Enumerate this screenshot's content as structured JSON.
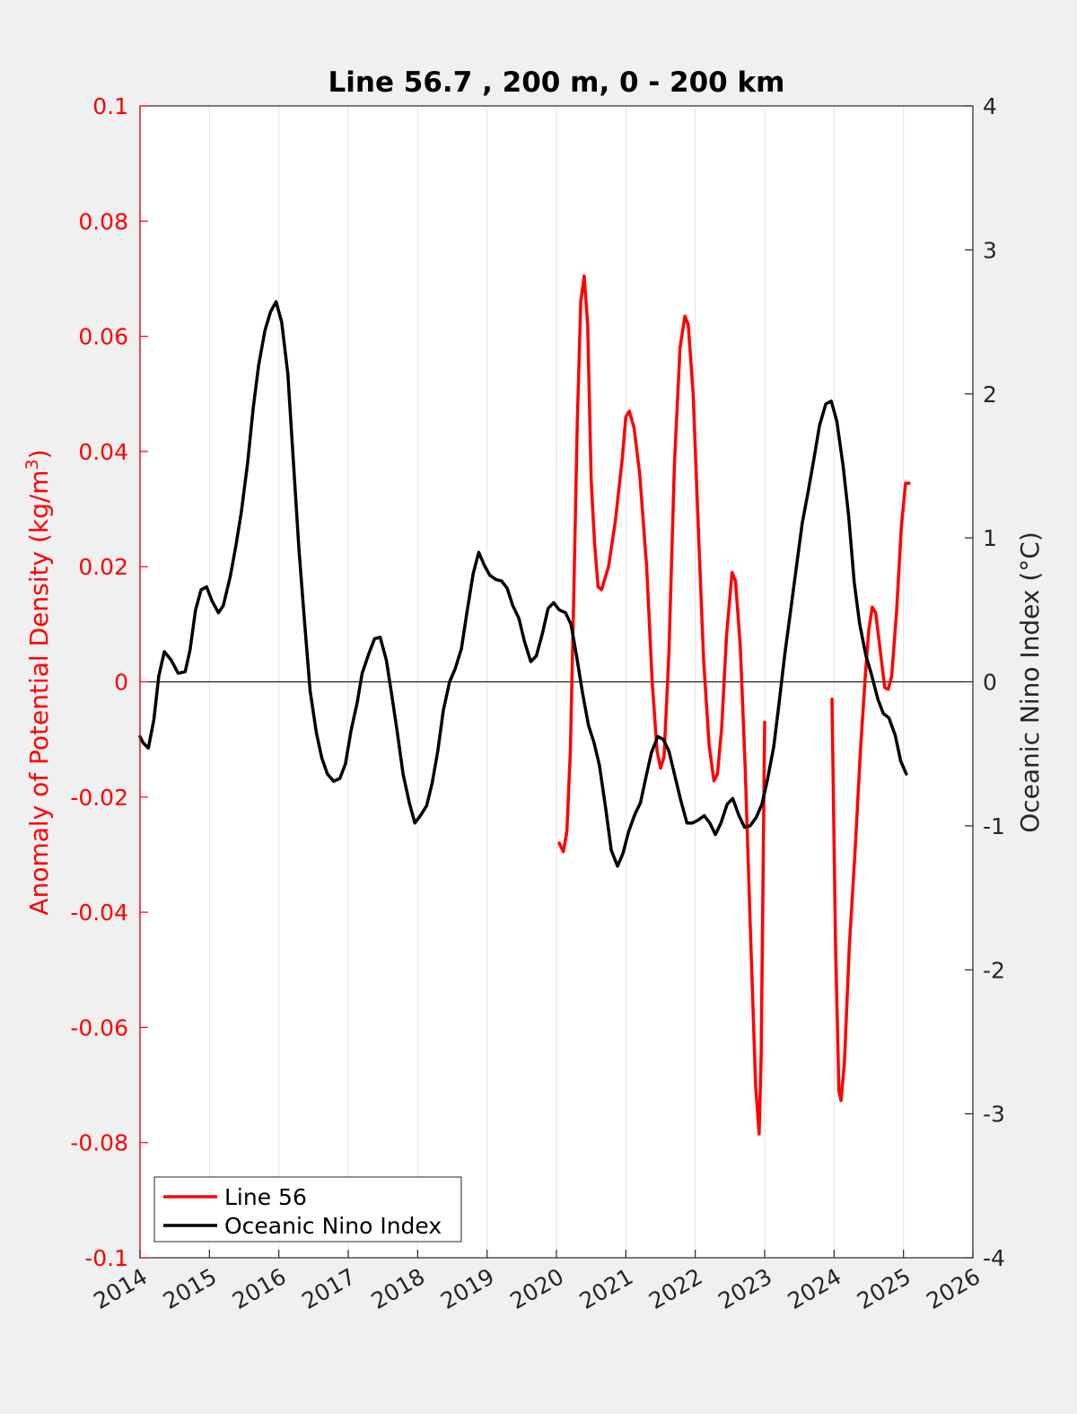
{
  "chart_data": {
    "type": "line",
    "title": "Line 56.7 , 200 m, 0 - 200 km",
    "ylabel_left_main": "Anomaly of Potential Density (kg/m",
    "ylabel_left_sup": "3",
    "ylabel_left_tail": ")",
    "ylabel_right": "Oceanic Nino Index (°C)",
    "xlim": [
      2014,
      2026
    ],
    "ylim_left": [
      -0.1,
      0.1
    ],
    "ylim_right": [
      -4,
      4
    ],
    "x_ticks": [
      {
        "value": 2014,
        "label": "2014"
      },
      {
        "value": 2015,
        "label": "2015"
      },
      {
        "value": 2016,
        "label": "2016"
      },
      {
        "value": 2017,
        "label": "2017"
      },
      {
        "value": 2018,
        "label": "2018"
      },
      {
        "value": 2019,
        "label": "2019"
      },
      {
        "value": 2020,
        "label": "2020"
      },
      {
        "value": 2021,
        "label": "2021"
      },
      {
        "value": 2022,
        "label": "2022"
      },
      {
        "value": 2023,
        "label": "2023"
      },
      {
        "value": 2024,
        "label": "2024"
      },
      {
        "value": 2025,
        "label": "2025"
      },
      {
        "value": 2026,
        "label": "2026"
      }
    ],
    "y_left_ticks": [
      {
        "value": 0.1,
        "label": "0.1"
      },
      {
        "value": 0.08,
        "label": "0.08"
      },
      {
        "value": 0.06,
        "label": "0.06"
      },
      {
        "value": 0.04,
        "label": "0.04"
      },
      {
        "value": 0.02,
        "label": "0.02"
      },
      {
        "value": 0,
        "label": "0"
      },
      {
        "value": -0.02,
        "label": "-0.02"
      },
      {
        "value": -0.04,
        "label": "-0.04"
      },
      {
        "value": -0.06,
        "label": "-0.06"
      },
      {
        "value": -0.08,
        "label": "-0.08"
      },
      {
        "value": -0.1,
        "label": "-0.1"
      }
    ],
    "y_right_ticks": [
      {
        "value": 4,
        "label": "4"
      },
      {
        "value": 3,
        "label": "3"
      },
      {
        "value": 2,
        "label": "2"
      },
      {
        "value": 1,
        "label": "1"
      },
      {
        "value": 0,
        "label": "0"
      },
      {
        "value": -1,
        "label": "-1"
      },
      {
        "value": -2,
        "label": "-2"
      },
      {
        "value": -3,
        "label": "-3"
      },
      {
        "value": -4,
        "label": "-4"
      }
    ],
    "grid": "vertical",
    "zero_line": true,
    "legend_position": "bottom-left",
    "colors": {
      "line56": "#ff0000",
      "oni": "#000000",
      "left_axis": "#ff0000",
      "right_axis": "#262626"
    },
    "series": [
      {
        "name": "Line 56",
        "axis": "left",
        "color": "#ff0000",
        "segments": [
          [
            [
              2020.04,
              -0.028
            ],
            [
              2020.1,
              -0.0295
            ],
            [
              2020.15,
              -0.026
            ],
            [
              2020.2,
              -0.012
            ],
            [
              2020.25,
              0.015
            ],
            [
              2020.3,
              0.045
            ],
            [
              2020.35,
              0.066
            ],
            [
              2020.4,
              0.0705
            ],
            [
              2020.45,
              0.062
            ],
            [
              2020.5,
              0.035
            ],
            [
              2020.55,
              0.024
            ],
            [
              2020.6,
              0.0165
            ],
            [
              2020.65,
              0.016
            ],
            [
              2020.75,
              0.02
            ],
            [
              2020.85,
              0.028
            ],
            [
              2020.95,
              0.039
            ],
            [
              2021.0,
              0.046
            ],
            [
              2021.05,
              0.047
            ],
            [
              2021.12,
              0.044
            ],
            [
              2021.2,
              0.036
            ],
            [
              2021.3,
              0.02
            ],
            [
              2021.38,
              0.0
            ],
            [
              2021.45,
              -0.012
            ],
            [
              2021.5,
              -0.015
            ],
            [
              2021.55,
              -0.013
            ],
            [
              2021.62,
              0.005
            ],
            [
              2021.7,
              0.038
            ],
            [
              2021.78,
              0.058
            ],
            [
              2021.85,
              0.0635
            ],
            [
              2021.9,
              0.062
            ],
            [
              2021.97,
              0.05
            ],
            [
              2022.05,
              0.025
            ],
            [
              2022.12,
              0.004
            ],
            [
              2022.2,
              -0.011
            ],
            [
              2022.27,
              -0.0172
            ],
            [
              2022.32,
              -0.016
            ],
            [
              2022.38,
              -0.008
            ],
            [
              2022.45,
              0.008
            ],
            [
              2022.53,
              0.019
            ],
            [
              2022.58,
              0.0175
            ],
            [
              2022.65,
              0.006
            ],
            [
              2022.72,
              -0.015
            ],
            [
              2022.8,
              -0.045
            ],
            [
              2022.87,
              -0.07
            ],
            [
              2022.92,
              -0.0785
            ],
            [
              2022.95,
              -0.065
            ],
            [
              2023.0,
              -0.007
            ]
          ],
          [
            [
              2023.97,
              -0.003
            ],
            [
              2024.02,
              -0.045
            ],
            [
              2024.07,
              -0.071
            ],
            [
              2024.1,
              -0.0727
            ],
            [
              2024.15,
              -0.066
            ],
            [
              2024.22,
              -0.046
            ],
            [
              2024.3,
              -0.03
            ],
            [
              2024.38,
              -0.012
            ],
            [
              2024.45,
              0.001
            ],
            [
              2024.5,
              0.009
            ],
            [
              2024.55,
              0.013
            ],
            [
              2024.6,
              0.012
            ],
            [
              2024.67,
              0.005
            ],
            [
              2024.73,
              -0.001
            ],
            [
              2024.78,
              -0.0013
            ],
            [
              2024.83,
              0.001
            ],
            [
              2024.9,
              0.012
            ],
            [
              2024.97,
              0.027
            ],
            [
              2025.03,
              0.0345
            ],
            [
              2025.08,
              0.0345
            ]
          ]
        ]
      },
      {
        "name": "Oceanic Nino Index",
        "axis": "right",
        "color": "#000000",
        "points": [
          [
            2014.0,
            -0.38
          ],
          [
            2014.04,
            -0.42
          ],
          [
            2014.12,
            -0.46
          ],
          [
            2014.2,
            -0.26
          ],
          [
            2014.27,
            0.04
          ],
          [
            2014.35,
            0.21
          ],
          [
            2014.45,
            0.15
          ],
          [
            2014.55,
            0.06
          ],
          [
            2014.65,
            0.07
          ],
          [
            2014.72,
            0.22
          ],
          [
            2014.8,
            0.5
          ],
          [
            2014.88,
            0.64
          ],
          [
            2014.96,
            0.66
          ],
          [
            2015.04,
            0.56
          ],
          [
            2015.13,
            0.48
          ],
          [
            2015.2,
            0.53
          ],
          [
            2015.3,
            0.73
          ],
          [
            2015.38,
            0.94
          ],
          [
            2015.46,
            1.18
          ],
          [
            2015.55,
            1.52
          ],
          [
            2015.63,
            1.9
          ],
          [
            2015.71,
            2.2
          ],
          [
            2015.8,
            2.44
          ],
          [
            2015.88,
            2.57
          ],
          [
            2015.96,
            2.64
          ],
          [
            2016.04,
            2.5
          ],
          [
            2016.13,
            2.14
          ],
          [
            2016.21,
            1.53
          ],
          [
            2016.29,
            0.92
          ],
          [
            2016.37,
            0.42
          ],
          [
            2016.45,
            -0.06
          ],
          [
            2016.54,
            -0.35
          ],
          [
            2016.62,
            -0.53
          ],
          [
            2016.7,
            -0.64
          ],
          [
            2016.79,
            -0.69
          ],
          [
            2016.88,
            -0.67
          ],
          [
            2016.96,
            -0.57
          ],
          [
            2017.04,
            -0.34
          ],
          [
            2017.13,
            -0.14
          ],
          [
            2017.2,
            0.06
          ],
          [
            2017.3,
            0.2
          ],
          [
            2017.38,
            0.3
          ],
          [
            2017.46,
            0.31
          ],
          [
            2017.55,
            0.15
          ],
          [
            2017.63,
            -0.1
          ],
          [
            2017.71,
            -0.36
          ],
          [
            2017.79,
            -0.64
          ],
          [
            2017.88,
            -0.84
          ],
          [
            2017.96,
            -0.98
          ],
          [
            2018.04,
            -0.93
          ],
          [
            2018.13,
            -0.86
          ],
          [
            2018.21,
            -0.7
          ],
          [
            2018.29,
            -0.48
          ],
          [
            2018.37,
            -0.2
          ],
          [
            2018.46,
            0.0
          ],
          [
            2018.54,
            0.09
          ],
          [
            2018.63,
            0.23
          ],
          [
            2018.71,
            0.48
          ],
          [
            2018.8,
            0.75
          ],
          [
            2018.88,
            0.9
          ],
          [
            2018.96,
            0.81
          ],
          [
            2019.04,
            0.74
          ],
          [
            2019.13,
            0.71
          ],
          [
            2019.21,
            0.7
          ],
          [
            2019.29,
            0.65
          ],
          [
            2019.37,
            0.53
          ],
          [
            2019.46,
            0.44
          ],
          [
            2019.54,
            0.28
          ],
          [
            2019.63,
            0.14
          ],
          [
            2019.71,
            0.18
          ],
          [
            2019.8,
            0.34
          ],
          [
            2019.88,
            0.51
          ],
          [
            2019.96,
            0.55
          ],
          [
            2020.04,
            0.5
          ],
          [
            2020.13,
            0.48
          ],
          [
            2020.21,
            0.4
          ],
          [
            2020.29,
            0.18
          ],
          [
            2020.37,
            -0.06
          ],
          [
            2020.46,
            -0.3
          ],
          [
            2020.54,
            -0.42
          ],
          [
            2020.62,
            -0.58
          ],
          [
            2020.71,
            -0.88
          ],
          [
            2020.79,
            -1.17
          ],
          [
            2020.88,
            -1.28
          ],
          [
            2020.96,
            -1.19
          ],
          [
            2021.04,
            -1.04
          ],
          [
            2021.13,
            -0.92
          ],
          [
            2021.21,
            -0.84
          ],
          [
            2021.29,
            -0.66
          ],
          [
            2021.37,
            -0.49
          ],
          [
            2021.46,
            -0.38
          ],
          [
            2021.54,
            -0.4
          ],
          [
            2021.62,
            -0.48
          ],
          [
            2021.71,
            -0.66
          ],
          [
            2021.79,
            -0.82
          ],
          [
            2021.88,
            -0.98
          ],
          [
            2021.96,
            -0.98
          ],
          [
            2022.04,
            -0.96
          ],
          [
            2022.13,
            -0.93
          ],
          [
            2022.21,
            -0.98
          ],
          [
            2022.29,
            -1.06
          ],
          [
            2022.37,
            -0.98
          ],
          [
            2022.46,
            -0.85
          ],
          [
            2022.54,
            -0.81
          ],
          [
            2022.63,
            -0.93
          ],
          [
            2022.71,
            -1.01
          ],
          [
            2022.79,
            -1.0
          ],
          [
            2022.88,
            -0.94
          ],
          [
            2022.96,
            -0.85
          ],
          [
            2023.04,
            -0.68
          ],
          [
            2023.13,
            -0.45
          ],
          [
            2023.21,
            -0.14
          ],
          [
            2023.29,
            0.19
          ],
          [
            2023.37,
            0.48
          ],
          [
            2023.46,
            0.81
          ],
          [
            2023.54,
            1.1
          ],
          [
            2023.63,
            1.33
          ],
          [
            2023.71,
            1.55
          ],
          [
            2023.79,
            1.78
          ],
          [
            2023.88,
            1.93
          ],
          [
            2023.96,
            1.95
          ],
          [
            2024.04,
            1.81
          ],
          [
            2024.13,
            1.5
          ],
          [
            2024.21,
            1.15
          ],
          [
            2024.29,
            0.69
          ],
          [
            2024.37,
            0.4
          ],
          [
            2024.46,
            0.18
          ],
          [
            2024.54,
            0.05
          ],
          [
            2024.63,
            -0.12
          ],
          [
            2024.71,
            -0.22
          ],
          [
            2024.79,
            -0.25
          ],
          [
            2024.88,
            -0.37
          ],
          [
            2024.96,
            -0.55
          ],
          [
            2025.04,
            -0.64
          ]
        ]
      }
    ]
  },
  "legend": {
    "items": [
      {
        "label": "Line 56",
        "color": "#ff0000"
      },
      {
        "label": "Oceanic Nino Index",
        "color": "#000000"
      }
    ]
  }
}
